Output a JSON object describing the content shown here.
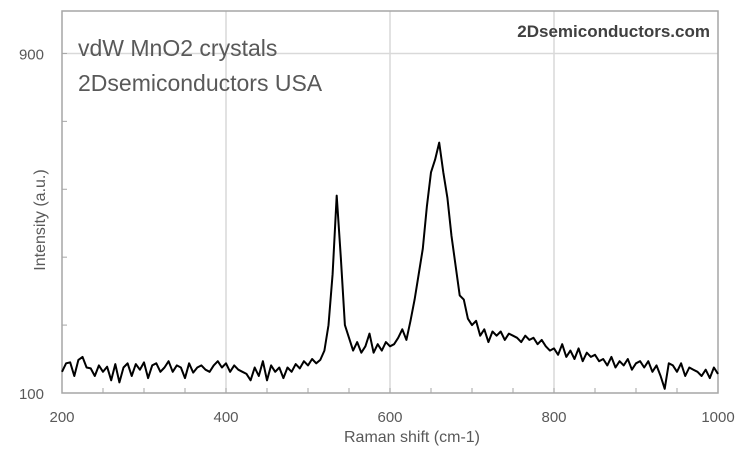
{
  "chart_data": {
    "type": "line",
    "xlabel": "Raman shift (cm-1)",
    "ylabel": "Intensity (a.u.)",
    "xlim": [
      200,
      1000
    ],
    "ylim": [
      100,
      1000
    ],
    "xticks": [
      200,
      400,
      600,
      800,
      1000
    ],
    "yticks": [
      100,
      900
    ],
    "x_minor_step": 50,
    "y_minor_step": 160,
    "grid": {
      "vertical": [
        400,
        600,
        800
      ],
      "horizontal": [
        900
      ]
    },
    "annotations": [
      "vdW MnO2 crystals",
      "2Dsemiconductors USA"
    ],
    "watermark": "2Dsemiconductors.com",
    "line_color": "#000000",
    "grid_color": "#d9d9d9",
    "series": [
      {
        "x_start": 200,
        "x_step": 5,
        "values": [
          150,
          170,
          172,
          140,
          178,
          185,
          160,
          158,
          140,
          165,
          150,
          162,
          130,
          168,
          125,
          160,
          170,
          140,
          168,
          155,
          172,
          135,
          165,
          170,
          150,
          160,
          175,
          150,
          165,
          160,
          135,
          170,
          148,
          160,
          165,
          155,
          150,
          165,
          175,
          160,
          170,
          150,
          165,
          155,
          150,
          145,
          130,
          160,
          140,
          175,
          130,
          165,
          150,
          160,
          135,
          160,
          150,
          168,
          158,
          175,
          165,
          180,
          170,
          178,
          200,
          260,
          380,
          565,
          420,
          260,
          230,
          200,
          220,
          195,
          210,
          240,
          195,
          215,
          200,
          220,
          210,
          215,
          230,
          250,
          225,
          270,
          320,
          380,
          440,
          540,
          620,
          650,
          690,
          620,
          560,
          470,
          400,
          330,
          320,
          275,
          260,
          270,
          235,
          250,
          220,
          245,
          235,
          245,
          225,
          240,
          235,
          230,
          220,
          235,
          225,
          230,
          215,
          225,
          210,
          200,
          205,
          190,
          215,
          185,
          200,
          180,
          205,
          175,
          195,
          185,
          190,
          175,
          180,
          165,
          185,
          160,
          175,
          165,
          180,
          155,
          170,
          175,
          160,
          175,
          150,
          165,
          140,
          110,
          170,
          165,
          150,
          170,
          140,
          160,
          155,
          150,
          140,
          155,
          135,
          160,
          145
        ]
      }
    ]
  }
}
